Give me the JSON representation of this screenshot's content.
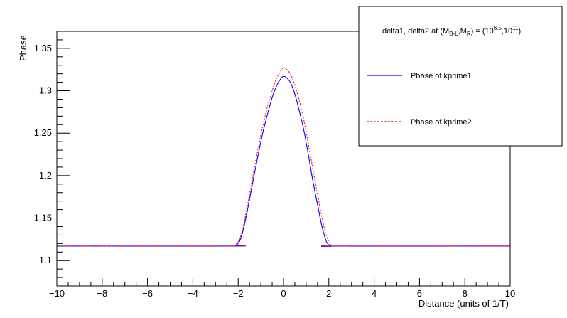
{
  "chart_data": {
    "type": "line",
    "title": "",
    "xlabel": "Distance (units of 1/T)",
    "ylabel": "Phase",
    "xlim": [
      -10,
      10
    ],
    "ylim": [
      1.07,
      1.37
    ],
    "x_ticks": [
      -10,
      -8,
      -6,
      -4,
      -2,
      0,
      2,
      4,
      6,
      8,
      10
    ],
    "x_tick_labels": [
      "−10",
      "−8",
      "−6",
      "−4",
      "−2",
      "0",
      "2",
      "4",
      "6",
      "8",
      "10"
    ],
    "y_ticks": [
      1.1,
      1.15,
      1.2,
      1.25,
      1.3,
      1.35
    ],
    "y_tick_labels": [
      "1.1",
      "1.15",
      "1.2",
      "1.25",
      "1.3",
      "1.35"
    ],
    "legend": {
      "placement": "top-right",
      "header_pre": "delta1, delta2 at (M",
      "header_sub1": "B-L",
      "header_mid": ",M",
      "header_sub2": "R",
      "header_eq": ") = (10",
      "header_sup1": "6.5",
      "header_comma": ",10",
      "header_sup2": "11",
      "header_close": ")"
    },
    "series": [
      {
        "name": "Phase of kprime1",
        "color": "#0000ff",
        "dash": "solid",
        "x": [
          -10,
          -2.3,
          -2.1,
          -1.9,
          -1.7,
          -1.5,
          -1.3,
          -1.1,
          -0.9,
          -0.7,
          -0.5,
          -0.3,
          -0.1,
          0,
          0.1,
          0.3,
          0.5,
          0.7,
          0.9,
          1.1,
          1.3,
          1.5,
          1.7,
          1.9,
          2.1,
          2.3,
          10
        ],
        "y": [
          1.117,
          1.117,
          1.118,
          1.125,
          1.145,
          1.172,
          1.2,
          1.227,
          1.252,
          1.273,
          1.292,
          1.306,
          1.315,
          1.317,
          1.316,
          1.31,
          1.296,
          1.276,
          1.253,
          1.224,
          1.193,
          1.166,
          1.14,
          1.122,
          1.117,
          1.117,
          1.117
        ]
      },
      {
        "name": "Phase of kprime2",
        "color": "#ff0000",
        "dash": "dotted",
        "x": [
          -10,
          -2.3,
          -2.1,
          -1.9,
          -1.7,
          -1.5,
          -1.3,
          -1.1,
          -0.9,
          -0.7,
          -0.5,
          -0.3,
          -0.1,
          0,
          0.1,
          0.3,
          0.5,
          0.7,
          0.9,
          1.1,
          1.3,
          1.5,
          1.7,
          1.9,
          2.1,
          2.3,
          10
        ],
        "y": [
          1.117,
          1.117,
          1.119,
          1.128,
          1.15,
          1.178,
          1.207,
          1.235,
          1.26,
          1.282,
          1.3,
          1.315,
          1.324,
          1.327,
          1.326,
          1.32,
          1.307,
          1.288,
          1.265,
          1.237,
          1.207,
          1.178,
          1.15,
          1.128,
          1.119,
          1.117,
          1.117
        ]
      }
    ]
  }
}
